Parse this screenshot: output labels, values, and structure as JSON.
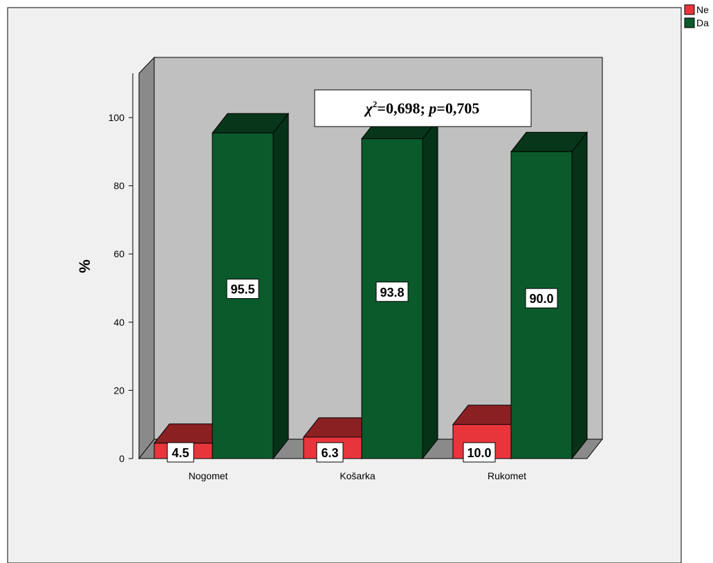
{
  "chart_data": {
    "type": "bar",
    "categories": [
      "Nogomet",
      "Košarka",
      "Rukomet"
    ],
    "series": [
      {
        "name": "Ne",
        "color": "#e8353b",
        "values": [
          4.5,
          6.3,
          10.0
        ],
        "labels": [
          "4.5",
          "6.3",
          "10.0"
        ]
      },
      {
        "name": "Da",
        "color": "#0b5a2c",
        "values": [
          95.5,
          93.8,
          90.0
        ],
        "labels": [
          "95.5",
          "93.8",
          "90.0"
        ]
      }
    ],
    "ylabel": "%",
    "ylim": [
      0,
      100
    ],
    "yticks": [
      0,
      20,
      40,
      60,
      80,
      100
    ],
    "yticklabels": [
      "0",
      "20",
      "40",
      "60",
      "80",
      "100"
    ],
    "legend": "top-right",
    "annotation": {
      "chi_symbol": "χ",
      "superscript": "2",
      "chi_value": "=0,698; ",
      "p_symbol": "p",
      "p_value": "=0,705"
    },
    "style": "3d",
    "background_color": "#c0c0c0"
  }
}
